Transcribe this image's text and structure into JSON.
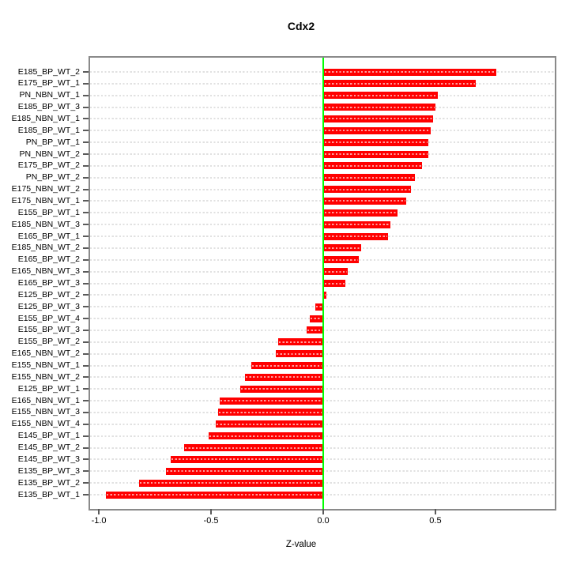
{
  "chart_data": {
    "type": "bar",
    "orientation": "horizontal",
    "title": "Cdx2",
    "xlabel": "Z-value",
    "ylabel": "",
    "legend": "none",
    "grid": "dashed-horizontal-per-row",
    "xlim": [
      -1.039,
      1.032
    ],
    "x_ticks": [
      {
        "label": "-1.0",
        "value": -1.0
      },
      {
        "label": "-0.5",
        "value": -0.5
      },
      {
        "label": "0.0",
        "value": 0.0
      },
      {
        "label": "0.5",
        "value": 0.5
      }
    ],
    "categories": [
      "E185_BP_WT_2",
      "E175_BP_WT_1",
      "PN_NBN_WT_1",
      "E185_BP_WT_3",
      "E185_NBN_WT_1",
      "E185_BP_WT_1",
      "PN_BP_WT_1",
      "PN_NBN_WT_2",
      "E175_BP_WT_2",
      "PN_BP_WT_2",
      "E175_NBN_WT_2",
      "E175_NBN_WT_1",
      "E155_BP_WT_1",
      "E185_NBN_WT_3",
      "E165_BP_WT_1",
      "E185_NBN_WT_2",
      "E165_BP_WT_2",
      "E165_NBN_WT_3",
      "E165_BP_WT_3",
      "E125_BP_WT_2",
      "E125_BP_WT_3",
      "E155_BP_WT_4",
      "E155_BP_WT_3",
      "E155_BP_WT_2",
      "E165_NBN_WT_2",
      "E155_NBN_WT_1",
      "E155_NBN_WT_2",
      "E125_BP_WT_1",
      "E165_NBN_WT_1",
      "E155_NBN_WT_3",
      "E155_NBN_WT_4",
      "E145_BP_WT_1",
      "E145_BP_WT_2",
      "E145_BP_WT_3",
      "E135_BP_WT_3",
      "E135_BP_WT_2",
      "E135_BP_WT_1"
    ],
    "values": [
      0.77,
      0.68,
      0.51,
      0.5,
      0.49,
      0.48,
      0.47,
      0.47,
      0.44,
      0.41,
      0.39,
      0.37,
      0.33,
      0.3,
      0.29,
      0.17,
      0.16,
      0.11,
      0.1,
      0.015,
      -0.035,
      -0.06,
      -0.075,
      -0.2,
      -0.21,
      -0.32,
      -0.35,
      -0.37,
      -0.46,
      -0.47,
      -0.48,
      -0.51,
      -0.62,
      -0.68,
      -0.7,
      -0.82,
      -0.97
    ],
    "colors": {
      "bar": "#ff0000",
      "zero_line": "#00ff00",
      "grid": "#e1e1e1",
      "box": "#8a8a8a",
      "tick": "#5a5a5a",
      "text": "#000000",
      "background": "#ffffff"
    }
  }
}
